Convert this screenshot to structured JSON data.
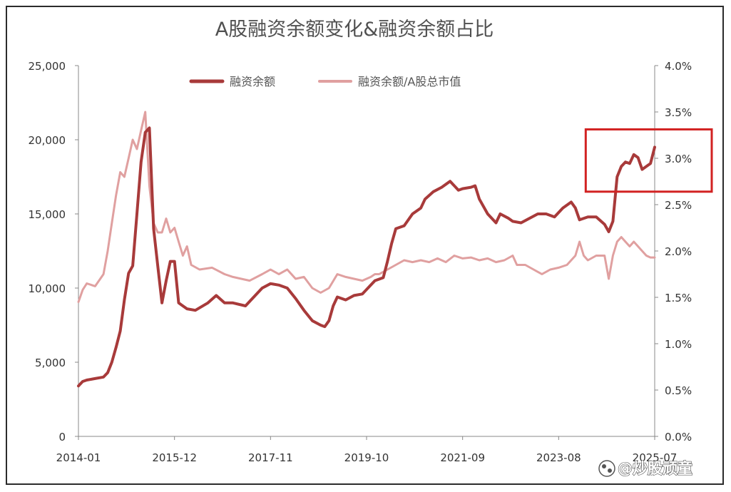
{
  "chart_data": {
    "type": "line",
    "title": "A股融资余额变化&融资余额占比",
    "x_tick_labels": [
      "2014-01",
      "2015-12",
      "2017-11",
      "2019-10",
      "2021-09",
      "2023-08",
      "2025-07"
    ],
    "x_range": [
      "2014-01",
      "2025-07"
    ],
    "y_left": {
      "ticks": [
        "0",
        "5,000",
        "10,000",
        "15,000",
        "20,000",
        "25,000"
      ],
      "ylim": [
        0,
        25000
      ]
    },
    "y_right": {
      "ticks": [
        "0.0%",
        "0.5%",
        "1.0%",
        "1.5%",
        "2.0%",
        "2.5%",
        "3.0%",
        "3.5%",
        "4.0%"
      ],
      "ylim": [
        0.0,
        4.0
      ]
    },
    "legend_position": "top",
    "grid": false,
    "series": [
      {
        "name": "融资余额",
        "axis": "left",
        "color": "#a83a3a",
        "points": [
          [
            "2014-01",
            3400
          ],
          [
            "2014-02",
            3700
          ],
          [
            "2014-03",
            3800
          ],
          [
            "2014-05",
            3900
          ],
          [
            "2014-07",
            4000
          ],
          [
            "2014-08",
            4300
          ],
          [
            "2014-09",
            5000
          ],
          [
            "2014-10",
            6000
          ],
          [
            "2014-11",
            7100
          ],
          [
            "2014-12",
            9200
          ],
          [
            "2015-01",
            11000
          ],
          [
            "2015-02",
            11500
          ],
          [
            "2015-03",
            15000
          ],
          [
            "2015-04",
            18500
          ],
          [
            "2015-05",
            20500
          ],
          [
            "2015-06",
            20800
          ],
          [
            "2015-07",
            14000
          ],
          [
            "2015-08",
            11500
          ],
          [
            "2015-09",
            9000
          ],
          [
            "2015-10",
            10500
          ],
          [
            "2015-11",
            11800
          ],
          [
            "2015-12",
            11800
          ],
          [
            "2016-01",
            9000
          ],
          [
            "2016-03",
            8600
          ],
          [
            "2016-05",
            8500
          ],
          [
            "2016-08",
            9000
          ],
          [
            "2016-10",
            9500
          ],
          [
            "2016-12",
            9000
          ],
          [
            "2017-02",
            9000
          ],
          [
            "2017-05",
            8800
          ],
          [
            "2017-07",
            9400
          ],
          [
            "2017-09",
            10000
          ],
          [
            "2017-11",
            10300
          ],
          [
            "2018-01",
            10200
          ],
          [
            "2018-03",
            10000
          ],
          [
            "2018-05",
            9300
          ],
          [
            "2018-07",
            8500
          ],
          [
            "2018-09",
            7800
          ],
          [
            "2018-11",
            7500
          ],
          [
            "2018-12",
            7400
          ],
          [
            "2019-01",
            7800
          ],
          [
            "2019-02",
            8800
          ],
          [
            "2019-03",
            9400
          ],
          [
            "2019-05",
            9200
          ],
          [
            "2019-07",
            9500
          ],
          [
            "2019-09",
            9600
          ],
          [
            "2019-11",
            10200
          ],
          [
            "2019-12",
            10500
          ],
          [
            "2020-01",
            10600
          ],
          [
            "2020-02",
            10700
          ],
          [
            "2020-03",
            11800
          ],
          [
            "2020-04",
            13000
          ],
          [
            "2020-05",
            14000
          ],
          [
            "2020-07",
            14200
          ],
          [
            "2020-09",
            15000
          ],
          [
            "2020-11",
            15400
          ],
          [
            "2020-12",
            16000
          ],
          [
            "2021-02",
            16500
          ],
          [
            "2021-04",
            16800
          ],
          [
            "2021-06",
            17200
          ],
          [
            "2021-08",
            16600
          ],
          [
            "2021-09",
            16700
          ],
          [
            "2021-11",
            16800
          ],
          [
            "2021-12",
            16900
          ],
          [
            "2022-01",
            16000
          ],
          [
            "2022-03",
            15000
          ],
          [
            "2022-05",
            14400
          ],
          [
            "2022-06",
            15000
          ],
          [
            "2022-08",
            14700
          ],
          [
            "2022-09",
            14500
          ],
          [
            "2022-11",
            14400
          ],
          [
            "2023-01",
            14700
          ],
          [
            "2023-03",
            15000
          ],
          [
            "2023-05",
            15000
          ],
          [
            "2023-07",
            14800
          ],
          [
            "2023-09",
            15400
          ],
          [
            "2023-11",
            15800
          ],
          [
            "2023-12",
            15400
          ],
          [
            "2024-01",
            14600
          ],
          [
            "2024-03",
            14800
          ],
          [
            "2024-05",
            14800
          ],
          [
            "2024-07",
            14300
          ],
          [
            "2024-08",
            13800
          ],
          [
            "2024-09",
            14500
          ],
          [
            "2024-10",
            17500
          ],
          [
            "2024-11",
            18200
          ],
          [
            "2024-12",
            18500
          ],
          [
            "2025-01",
            18400
          ],
          [
            "2025-02",
            19000
          ],
          [
            "2025-03",
            18800
          ],
          [
            "2025-04",
            18000
          ],
          [
            "2025-05",
            18200
          ],
          [
            "2025-06",
            18400
          ],
          [
            "2025-07",
            19500
          ]
        ]
      },
      {
        "name": "融资余额/A股总市值",
        "axis": "right",
        "color": "#e0a0a0",
        "points": [
          [
            "2014-01",
            1.45
          ],
          [
            "2014-02",
            1.58
          ],
          [
            "2014-03",
            1.65
          ],
          [
            "2014-05",
            1.62
          ],
          [
            "2014-07",
            1.75
          ],
          [
            "2014-08",
            2.0
          ],
          [
            "2014-09",
            2.3
          ],
          [
            "2014-10",
            2.6
          ],
          [
            "2014-11",
            2.85
          ],
          [
            "2014-12",
            2.8
          ],
          [
            "2015-01",
            3.0
          ],
          [
            "2015-02",
            3.2
          ],
          [
            "2015-03",
            3.1
          ],
          [
            "2015-04",
            3.3
          ],
          [
            "2015-05",
            3.5
          ],
          [
            "2015-06",
            2.7
          ],
          [
            "2015-07",
            2.3
          ],
          [
            "2015-08",
            2.2
          ],
          [
            "2015-09",
            2.2
          ],
          [
            "2015-10",
            2.35
          ],
          [
            "2015-11",
            2.2
          ],
          [
            "2015-12",
            2.25
          ],
          [
            "2016-01",
            2.1
          ],
          [
            "2016-02",
            1.95
          ],
          [
            "2016-03",
            2.05
          ],
          [
            "2016-04",
            1.85
          ],
          [
            "2016-06",
            1.8
          ],
          [
            "2016-09",
            1.82
          ],
          [
            "2016-12",
            1.75
          ],
          [
            "2017-02",
            1.72
          ],
          [
            "2017-04",
            1.7
          ],
          [
            "2017-06",
            1.68
          ],
          [
            "2017-09",
            1.75
          ],
          [
            "2017-11",
            1.8
          ],
          [
            "2018-01",
            1.75
          ],
          [
            "2018-03",
            1.8
          ],
          [
            "2018-05",
            1.7
          ],
          [
            "2018-07",
            1.72
          ],
          [
            "2018-09",
            1.6
          ],
          [
            "2018-11",
            1.55
          ],
          [
            "2019-01",
            1.6
          ],
          [
            "2019-03",
            1.75
          ],
          [
            "2019-05",
            1.72
          ],
          [
            "2019-07",
            1.7
          ],
          [
            "2019-09",
            1.68
          ],
          [
            "2019-11",
            1.72
          ],
          [
            "2019-12",
            1.75
          ],
          [
            "2020-01",
            1.75
          ],
          [
            "2020-03",
            1.8
          ],
          [
            "2020-05",
            1.85
          ],
          [
            "2020-07",
            1.9
          ],
          [
            "2020-09",
            1.88
          ],
          [
            "2020-11",
            1.9
          ],
          [
            "2021-01",
            1.88
          ],
          [
            "2021-03",
            1.92
          ],
          [
            "2021-05",
            1.88
          ],
          [
            "2021-07",
            1.95
          ],
          [
            "2021-09",
            1.92
          ],
          [
            "2021-11",
            1.93
          ],
          [
            "2022-01",
            1.9
          ],
          [
            "2022-03",
            1.92
          ],
          [
            "2022-05",
            1.88
          ],
          [
            "2022-07",
            1.9
          ],
          [
            "2022-09",
            1.95
          ],
          [
            "2022-10",
            1.85
          ],
          [
            "2022-12",
            1.85
          ],
          [
            "2023-02",
            1.8
          ],
          [
            "2023-04",
            1.75
          ],
          [
            "2023-06",
            1.8
          ],
          [
            "2023-08",
            1.82
          ],
          [
            "2023-10",
            1.85
          ],
          [
            "2023-12",
            1.95
          ],
          [
            "2024-01",
            2.1
          ],
          [
            "2024-02",
            1.95
          ],
          [
            "2024-03",
            1.9
          ],
          [
            "2024-05",
            1.95
          ],
          [
            "2024-07",
            1.95
          ],
          [
            "2024-08",
            1.7
          ],
          [
            "2024-09",
            1.95
          ],
          [
            "2024-10",
            2.1
          ],
          [
            "2024-11",
            2.15
          ],
          [
            "2024-12",
            2.1
          ],
          [
            "2025-01",
            2.05
          ],
          [
            "2025-02",
            2.1
          ],
          [
            "2025-03",
            2.05
          ],
          [
            "2025-04",
            2.0
          ],
          [
            "2025-05",
            1.95
          ],
          [
            "2025-06",
            1.93
          ],
          [
            "2025-07",
            1.93
          ]
        ]
      }
    ],
    "annotations": [
      {
        "type": "highlight-box",
        "color": "#d22222",
        "x_range": [
          "2024-10",
          "2025-07"
        ],
        "y_range": [
          16500,
          20700
        ]
      }
    ]
  },
  "watermark": {
    "text": "@炒股顽童"
  }
}
